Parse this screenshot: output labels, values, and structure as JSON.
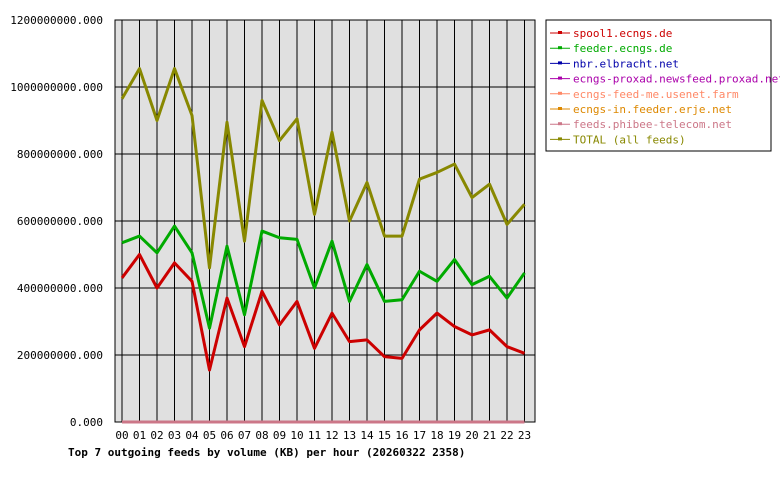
{
  "chart_data": {
    "type": "line",
    "title": "Top 7 outgoing feeds by volume (KB) per hour (20260322 2358)",
    "xlabel": "",
    "ylabel": "",
    "categories": [
      "00",
      "01",
      "02",
      "03",
      "04",
      "05",
      "06",
      "07",
      "08",
      "09",
      "10",
      "11",
      "12",
      "13",
      "14",
      "15",
      "16",
      "17",
      "18",
      "19",
      "20",
      "21",
      "22",
      "23"
    ],
    "ylim": [
      0,
      1200000000
    ],
    "yticks": [
      "0.000",
      "200000000.000",
      "400000000.000",
      "600000000.000",
      "800000000.000",
      "1000000000.000",
      "1200000000.000"
    ],
    "ytick_values": [
      0,
      200000000,
      400000000,
      600000000,
      800000000,
      1000000000,
      1200000000
    ],
    "grid": true,
    "legend_position": "right",
    "series": [
      {
        "name": "spool1.ecngs.de",
        "color": "#cc0000",
        "values": [
          430000000,
          500000000,
          400000000,
          475000000,
          420000000,
          155000000,
          370000000,
          225000000,
          390000000,
          290000000,
          360000000,
          220000000,
          325000000,
          240000000,
          245000000,
          195000000,
          190000000,
          275000000,
          325000000,
          285000000,
          260000000,
          275000000,
          225000000,
          205000000
        ]
      },
      {
        "name": "feeder.ecngs.de",
        "color": "#00aa00",
        "values": [
          535000000,
          555000000,
          505000000,
          585000000,
          505000000,
          280000000,
          525000000,
          320000000,
          570000000,
          550000000,
          545000000,
          400000000,
          540000000,
          360000000,
          470000000,
          360000000,
          365000000,
          450000000,
          420000000,
          485000000,
          410000000,
          435000000,
          370000000,
          445000000
        ]
      },
      {
        "name": "nbr.elbracht.net",
        "color": "#0000aa",
        "values": [
          0,
          0,
          0,
          0,
          0,
          0,
          0,
          0,
          0,
          0,
          0,
          0,
          0,
          0,
          0,
          0,
          0,
          0,
          0,
          0,
          0,
          0,
          0,
          0
        ]
      },
      {
        "name": "ecngs-proxad.newsfeed.proxad.net",
        "color": "#aa00aa",
        "values": [
          0,
          0,
          0,
          0,
          0,
          0,
          0,
          0,
          0,
          0,
          0,
          0,
          0,
          0,
          0,
          0,
          0,
          0,
          0,
          0,
          0,
          0,
          0,
          0
        ]
      },
      {
        "name": "ecngs-feed-me.usenet.farm",
        "color": "#ff8866",
        "values": [
          0,
          0,
          0,
          0,
          0,
          0,
          0,
          0,
          0,
          0,
          0,
          0,
          0,
          0,
          0,
          0,
          0,
          0,
          0,
          0,
          0,
          0,
          0,
          0
        ]
      },
      {
        "name": "ecngs-in.feeder.erje.net",
        "color": "#dd8800",
        "values": [
          0,
          0,
          0,
          0,
          0,
          0,
          0,
          0,
          0,
          0,
          0,
          0,
          0,
          0,
          0,
          0,
          0,
          0,
          0,
          0,
          0,
          0,
          0,
          0
        ]
      },
      {
        "name": "feeds.phibee-telecom.net",
        "color": "#cc7788",
        "values": [
          0,
          0,
          0,
          0,
          0,
          0,
          0,
          0,
          0,
          0,
          0,
          0,
          0,
          0,
          0,
          0,
          0,
          0,
          0,
          0,
          0,
          0,
          0,
          0
        ]
      },
      {
        "name": "TOTAL (all feeds)",
        "color": "#888800",
        "values": [
          965000000,
          1055000000,
          900000000,
          1055000000,
          915000000,
          460000000,
          895000000,
          540000000,
          960000000,
          840000000,
          905000000,
          620000000,
          865000000,
          600000000,
          715000000,
          555000000,
          555000000,
          725000000,
          745000000,
          770000000,
          670000000,
          710000000,
          590000000,
          650000000
        ]
      }
    ]
  }
}
